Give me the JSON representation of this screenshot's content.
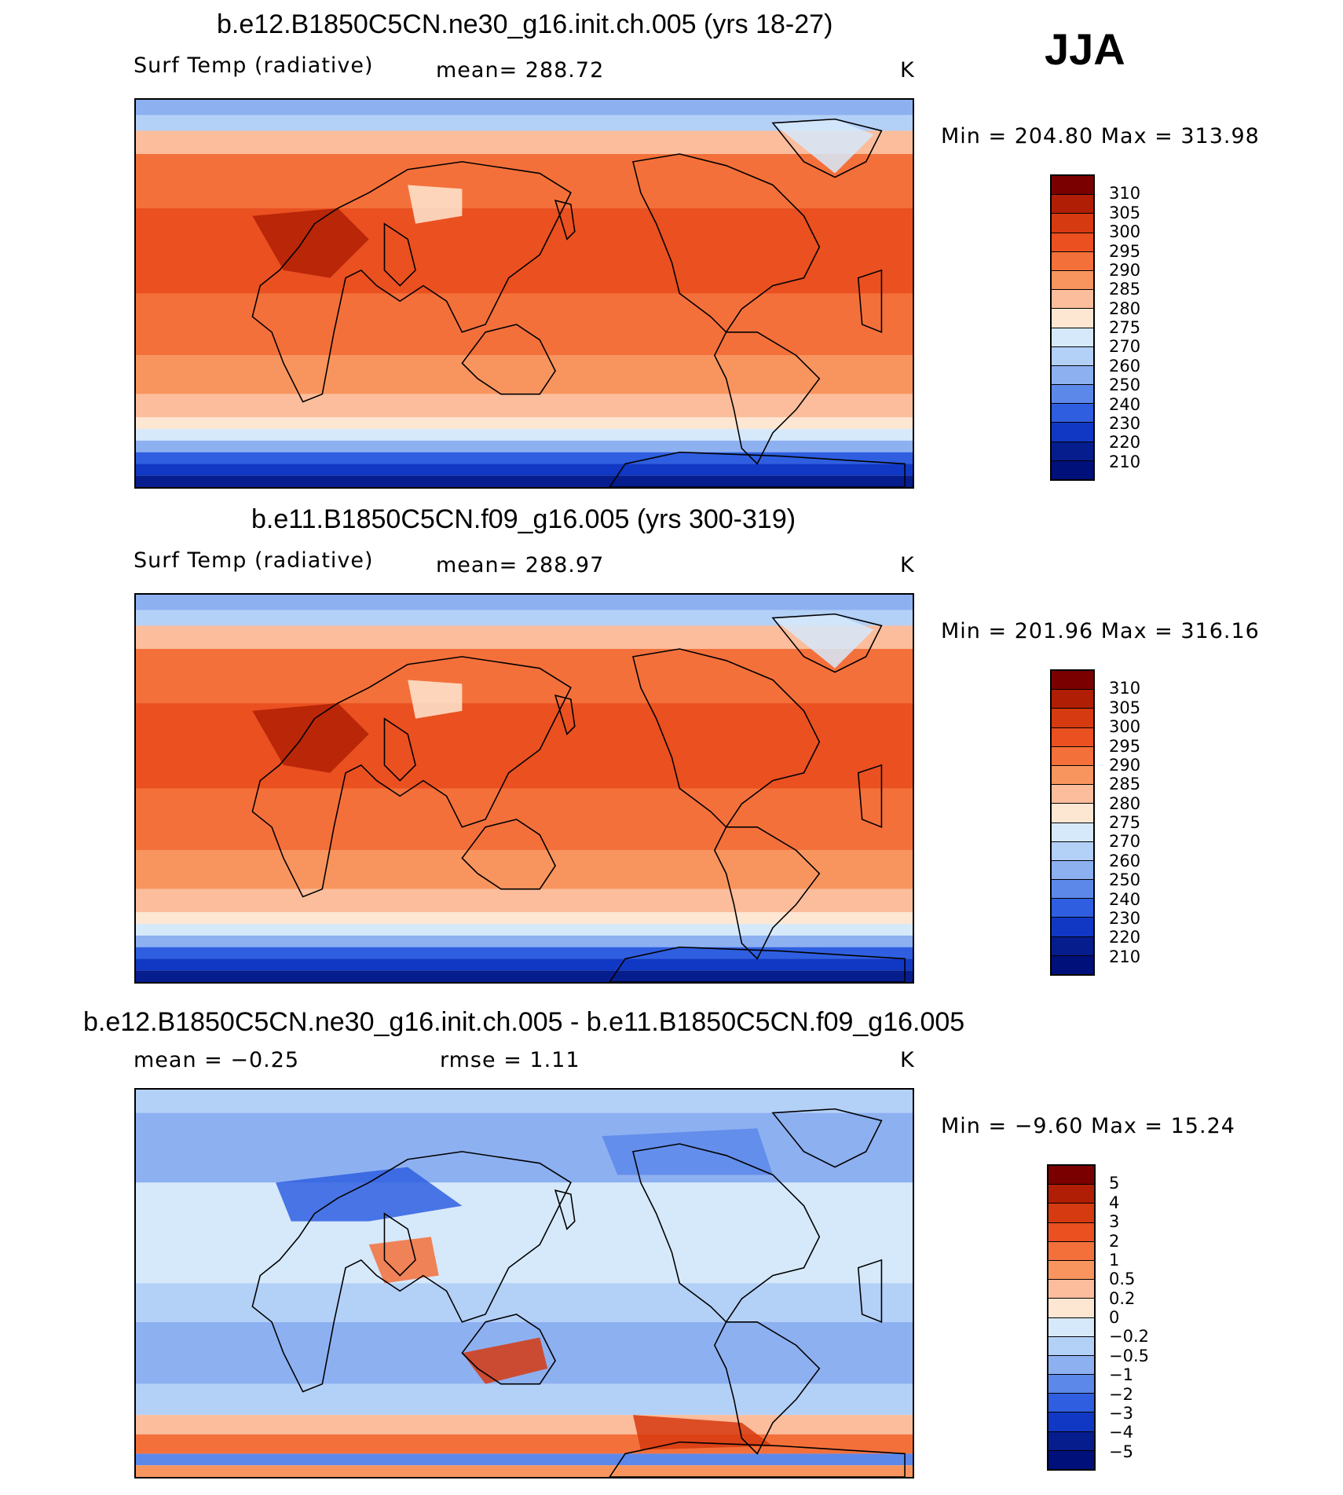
{
  "season": "JJA",
  "chart_data": [
    {
      "type": "heatmap",
      "title": "b.e12.B1850C5CN.ne30_g16.init.ch.005 (yrs 18-27)",
      "left_label": "Surf Temp (radiative)",
      "center_label": "mean=  288.72",
      "units": "K",
      "minmax": "Min  =  204.80  Max  =  313.98",
      "stats": {
        "mean": 288.72,
        "min": 204.8,
        "max": 313.98
      },
      "colorbar_levels": [
        "310",
        "305",
        "300",
        "295",
        "290",
        "285",
        "280",
        "275",
        "270",
        "260",
        "250",
        "240",
        "230",
        "220",
        "210"
      ],
      "colors": [
        "#7a0000",
        "#b01e05",
        "#d63a10",
        "#ea5020",
        "#f4703a",
        "#f8955e",
        "#fbbd9c",
        "#fde6d2",
        "#d6e9fb",
        "#b3d0f7",
        "#8db0f1",
        "#5c88ea",
        "#2f5fe0",
        "#1138c4",
        "#061d8e",
        "#00107a"
      ]
    },
    {
      "type": "heatmap",
      "title": "b.e11.B1850C5CN.f09_g16.005 (yrs 300-319)",
      "left_label": "Surf Temp (radiative)",
      "center_label": "mean=  288.97",
      "units": "K",
      "minmax": "Min  =  201.96  Max  =  316.16",
      "stats": {
        "mean": 288.97,
        "min": 201.96,
        "max": 316.16
      },
      "colorbar_levels": [
        "310",
        "305",
        "300",
        "295",
        "290",
        "285",
        "280",
        "275",
        "270",
        "260",
        "250",
        "240",
        "230",
        "220",
        "210"
      ],
      "colors": [
        "#7a0000",
        "#b01e05",
        "#d63a10",
        "#ea5020",
        "#f4703a",
        "#f8955e",
        "#fbbd9c",
        "#fde6d2",
        "#d6e9fb",
        "#b3d0f7",
        "#8db0f1",
        "#5c88ea",
        "#2f5fe0",
        "#1138c4",
        "#061d8e",
        "#00107a"
      ]
    },
    {
      "type": "heatmap",
      "title": "b.e12.B1850C5CN.ne30_g16.init.ch.005 - b.e11.B1850C5CN.f09_g16.005",
      "left_label": "mean =   −0.25",
      "center_label": "rmse =     1.11",
      "units": "K",
      "minmax": "Min  =   −9.60  Max  =    15.24",
      "stats": {
        "mean": -0.25,
        "rmse": 1.11,
        "min": -9.6,
        "max": 15.24
      },
      "colorbar_levels": [
        "5",
        "4",
        "3",
        "2",
        "1",
        "0.5",
        "0.2",
        "0",
        "−0.2",
        "−0.5",
        "−1",
        "−2",
        "−3",
        "−4",
        "−5"
      ],
      "colors": [
        "#7a0000",
        "#b01e05",
        "#d63a10",
        "#ea5020",
        "#f4703a",
        "#f8955e",
        "#fbbd9c",
        "#fde6d2",
        "#d6e9fb",
        "#b3d0f7",
        "#8db0f1",
        "#5c88ea",
        "#2f5fe0",
        "#1138c4",
        "#061d8e",
        "#00107a"
      ]
    }
  ]
}
